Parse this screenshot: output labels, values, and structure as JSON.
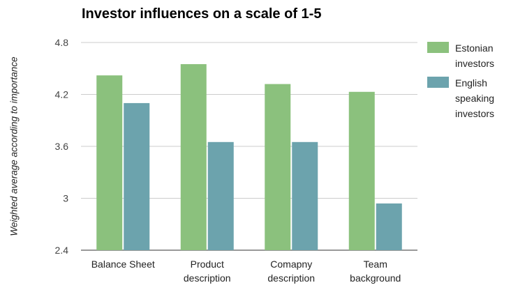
{
  "chart_data": {
    "type": "bar",
    "title": "Investor influences on a scale of 1-5",
    "ylabel": "Weighted average according to importance",
    "xlabel": "",
    "categories": [
      [
        "Balance Sheet"
      ],
      [
        "Product",
        "description"
      ],
      [
        "Comapny",
        "description"
      ],
      [
        "Team",
        "background"
      ]
    ],
    "series": [
      {
        "name": "Estonian investors",
        "color": "#8bc17d",
        "values": [
          4.42,
          4.55,
          4.32,
          4.23
        ]
      },
      {
        "name": "English speaking investors",
        "color": "#6ca3ad",
        "values": [
          4.1,
          3.65,
          3.65,
          2.94
        ]
      }
    ],
    "ylim": [
      2.4,
      4.8
    ],
    "yticks": [
      "2.4",
      "3",
      "3.6",
      "4.2",
      "4.8"
    ],
    "grid": true,
    "legend_position": "right"
  }
}
